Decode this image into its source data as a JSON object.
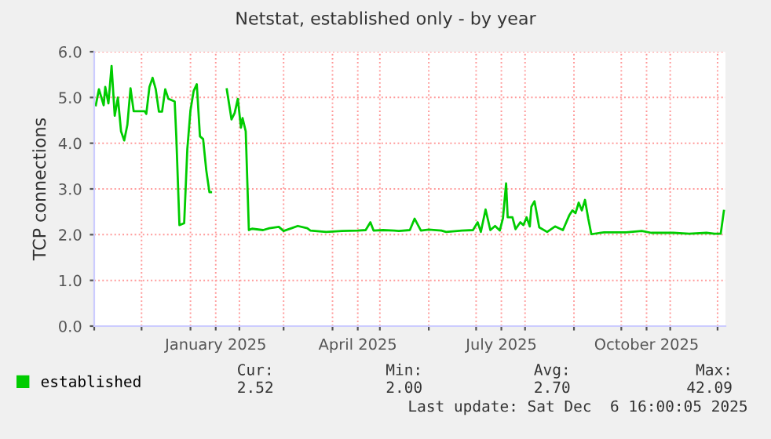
{
  "chart_data": {
    "type": "line",
    "title": "Netstat, established only - by year",
    "ylabel": "TCP connections",
    "x": [
      "2024-11-02",
      "2024-11-04",
      "2024-11-07",
      "2024-11-08",
      "2024-11-10",
      "2024-11-12",
      "2024-11-14",
      "2024-11-16",
      "2024-11-18",
      "2024-11-20",
      "2024-11-22",
      "2024-11-24",
      "2024-11-26",
      "2024-12-03",
      "2024-12-04",
      "2024-12-06",
      "2024-12-08",
      "2024-12-10",
      "2024-12-12",
      "2024-12-14",
      "2024-12-16",
      "2024-12-18",
      "2024-12-22",
      "2024-12-23",
      "2024-12-25",
      "2024-12-28",
      "2024-12-30",
      "2025-01-01",
      "2025-01-03",
      "2025-01-05",
      "2025-01-07",
      "2025-01-09",
      "2025-01-11",
      "2025-01-13",
      "2025-01-14",
      "2025-01-20",
      "2025-01-24",
      "2025-01-27",
      "2025-01-29",
      "2025-01-31",
      "2025-02-02",
      "2025-02-03",
      "2025-02-05",
      "2025-02-07",
      "2025-02-09",
      "2025-02-16",
      "2025-02-20",
      "2025-02-26",
      "2025-03-01",
      "2025-03-06",
      "2025-03-10",
      "2025-03-16",
      "2025-03-18",
      "2025-03-28",
      "2025-04-07",
      "2025-04-17",
      "2025-04-22",
      "2025-04-25",
      "2025-04-27",
      "2025-05-03",
      "2025-05-10",
      "2025-05-13",
      "2025-05-20",
      "2025-05-23",
      "2025-05-27",
      "2025-06-01",
      "2025-06-09",
      "2025-06-12",
      "2025-06-22",
      "2025-06-29",
      "2025-07-02",
      "2025-07-04",
      "2025-07-07",
      "2025-07-10",
      "2025-07-13",
      "2025-07-16",
      "2025-07-18",
      "2025-07-20",
      "2025-07-21",
      "2025-07-24",
      "2025-07-26",
      "2025-07-29",
      "2025-07-31",
      "2025-08-02",
      "2025-08-04",
      "2025-08-05",
      "2025-08-07",
      "2025-08-10",
      "2025-08-15",
      "2025-08-20",
      "2025-08-25",
      "2025-08-29",
      "2025-08-31",
      "2025-09-02",
      "2025-09-04",
      "2025-09-06",
      "2025-09-08",
      "2025-09-10",
      "2025-09-12",
      "2025-09-20",
      "2025-10-04",
      "2025-10-14",
      "2025-10-20",
      "2025-11-03",
      "2025-11-13",
      "2025-11-24",
      "2025-11-29",
      "2025-12-03",
      "2025-12-05"
    ],
    "series": [
      {
        "name": "established",
        "color": "#00cc00",
        "values": [
          4.83,
          5.18,
          4.83,
          5.23,
          4.87,
          5.69,
          4.6,
          5.0,
          4.26,
          4.06,
          4.4,
          5.2,
          4.7,
          4.7,
          4.64,
          5.23,
          5.43,
          5.18,
          4.69,
          4.69,
          5.18,
          4.97,
          4.91,
          4.15,
          2.21,
          2.25,
          3.87,
          4.72,
          5.14,
          5.29,
          4.15,
          4.09,
          3.41,
          2.93,
          2.93,
          null,
          5.18,
          4.52,
          4.66,
          4.97,
          4.34,
          4.55,
          4.26,
          2.1,
          2.13,
          2.1,
          2.14,
          2.17,
          2.08,
          2.14,
          2.19,
          2.14,
          2.09,
          2.06,
          2.08,
          2.09,
          2.1,
          2.27,
          2.09,
          2.1,
          2.09,
          2.08,
          2.1,
          2.35,
          2.09,
          2.11,
          2.09,
          2.06,
          2.09,
          2.1,
          2.27,
          2.06,
          2.55,
          2.1,
          2.19,
          2.09,
          2.36,
          3.12,
          2.38,
          2.38,
          2.12,
          2.27,
          2.21,
          2.38,
          2.18,
          2.61,
          2.73,
          2.16,
          2.06,
          2.18,
          2.1,
          2.42,
          2.53,
          2.47,
          2.7,
          2.53,
          2.76,
          2.36,
          2.01,
          2.05,
          2.05,
          2.08,
          2.04,
          2.04,
          2.02,
          2.04,
          2.02,
          2.02,
          2.52
        ]
      }
    ],
    "xlim": [
      "2024-11-01",
      "2025-12-06"
    ],
    "xticks": [
      {
        "value": "2024-11-01",
        "label": null
      },
      {
        "value": "2024-12-01",
        "label": null
      },
      {
        "value": "2025-01-01",
        "label": null
      },
      {
        "value": "2025-01-17",
        "label": "January 2025"
      },
      {
        "value": "2025-02-01",
        "label": null
      },
      {
        "value": "2025-03-01",
        "label": null
      },
      {
        "value": "2025-04-01",
        "label": null
      },
      {
        "value": "2025-04-17",
        "label": "April 2025"
      },
      {
        "value": "2025-05-01",
        "label": null
      },
      {
        "value": "2025-06-01",
        "label": null
      },
      {
        "value": "2025-07-01",
        "label": null
      },
      {
        "value": "2025-07-17",
        "label": "July 2025"
      },
      {
        "value": "2025-08-01",
        "label": null
      },
      {
        "value": "2025-09-01",
        "label": null
      },
      {
        "value": "2025-10-01",
        "label": null
      },
      {
        "value": "2025-10-17",
        "label": "October 2025"
      },
      {
        "value": "2025-11-01",
        "label": null
      },
      {
        "value": "2025-12-01",
        "label": null
      }
    ],
    "ylim": [
      0,
      6
    ],
    "yticks": [
      {
        "value": 0,
        "label": "0.0"
      },
      {
        "value": 1,
        "label": "1.0"
      },
      {
        "value": 2,
        "label": "2.0"
      },
      {
        "value": 3,
        "label": "3.0"
      },
      {
        "value": 4,
        "label": "4.0"
      },
      {
        "value": 5,
        "label": "5.0"
      },
      {
        "value": 6,
        "label": "6.0"
      }
    ],
    "grid": true,
    "legend": "bottom left",
    "annotations": [
      "Cur:",
      "Min:",
      "Avg:",
      "Max:",
      "2.52",
      "2.00",
      "2.70",
      "42.09",
      "Last update: Sat Dec  6 16:00:05 2025"
    ]
  }
}
